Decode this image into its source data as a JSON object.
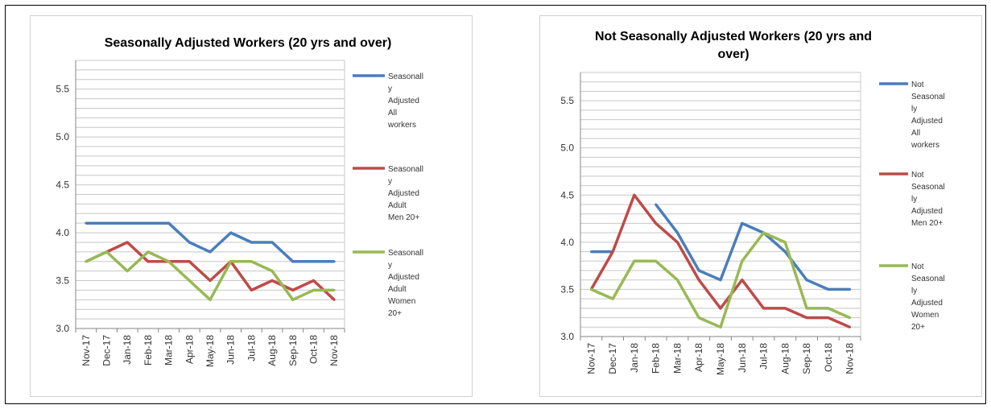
{
  "chart_data": [
    {
      "type": "line",
      "title": "Seasonally Adjusted Workers (20 yrs and over)",
      "categories": [
        "Nov-17",
        "Dec-17",
        "Jan-18",
        "Feb-18",
        "Mar-18",
        "Apr-18",
        "May-18",
        "Jun-18",
        "Jul-18",
        "Aug-18",
        "Sep-18",
        "Oct-18",
        "Nov-18"
      ],
      "ylim": [
        3.0,
        5.8
      ],
      "y_ticks": [
        "3.0",
        "3.5",
        "4.0",
        "4.5",
        "5.0",
        "5.5"
      ],
      "y_tick_values": [
        3.0,
        3.5,
        4.0,
        4.5,
        5.0,
        5.5
      ],
      "grid": true,
      "legend_position": "right",
      "series": [
        {
          "name": "Seasonally Adjusted All workers",
          "name_lines": [
            "Seasonall",
            "y",
            "Adjusted",
            "All",
            "workers"
          ],
          "color": "#4a7ebb",
          "values": [
            4.1,
            4.1,
            4.1,
            4.1,
            4.1,
            3.9,
            3.8,
            4.0,
            3.9,
            3.9,
            3.7,
            3.7,
            3.7
          ]
        },
        {
          "name": "Seasonally Adjusted Adult Men 20+",
          "name_lines": [
            "Seasonall",
            "y",
            "Adjusted",
            "Adult",
            "Men 20+"
          ],
          "color": "#be4b48",
          "values": [
            3.7,
            3.8,
            3.9,
            3.7,
            3.7,
            3.7,
            3.5,
            3.7,
            3.4,
            3.5,
            3.4,
            3.5,
            3.3
          ]
        },
        {
          "name": "Seasonally Adjusted Adult Women 20+",
          "name_lines": [
            "Seasonall",
            "y",
            "Adjusted",
            "Adult",
            "Women",
            "20+"
          ],
          "color": "#98b954",
          "values": [
            3.7,
            3.8,
            3.6,
            3.8,
            3.7,
            3.5,
            3.3,
            3.7,
            3.7,
            3.6,
            3.3,
            3.4,
            3.4
          ]
        }
      ]
    },
    {
      "type": "line",
      "title": "Not Seasonally Adjusted Workers (20 yrs and over)",
      "title_lines": [
        "Not Seasonally Adjusted Workers (20 yrs and",
        "over)"
      ],
      "categories": [
        "Nov-17",
        "Dec-17",
        "Jan-18",
        "Feb-18",
        "Mar-18",
        "Apr-18",
        "May-18",
        "Jun-18",
        "Jul-18",
        "Aug-18",
        "Sep-18",
        "Oct-18",
        "Nov-18"
      ],
      "ylim": [
        3.0,
        5.8
      ],
      "y_ticks": [
        "3.0",
        "3.5",
        "4.0",
        "4.5",
        "5.0",
        "5.5"
      ],
      "y_tick_values": [
        3.0,
        3.5,
        4.0,
        4.5,
        5.0,
        5.5
      ],
      "grid": true,
      "legend_position": "right",
      "series": [
        {
          "name": "Not Seasonally Adjusted All workers",
          "name_lines": [
            "Not",
            "Seasonal",
            "ly",
            "Adjusted",
            "All",
            "workers"
          ],
          "color": "#4a7ebb",
          "values": [
            3.9,
            3.9,
            null,
            4.4,
            4.1,
            3.7,
            3.6,
            4.2,
            4.1,
            3.9,
            3.6,
            3.5,
            3.5
          ]
        },
        {
          "name": "Not Seasonally Adjusted Men 20+",
          "name_lines": [
            "Not",
            "Seasonal",
            "ly",
            "Adjusted",
            "Men 20+"
          ],
          "color": "#be4b48",
          "values": [
            3.5,
            3.9,
            4.5,
            4.2,
            4.0,
            3.6,
            3.3,
            3.6,
            3.3,
            3.3,
            3.2,
            3.2,
            3.1
          ]
        },
        {
          "name": "Not Seasonally Adjusted Women 20+",
          "name_lines": [
            "Not",
            "Seasonal",
            "ly",
            "Adjusted",
            "Women",
            "20+"
          ],
          "color": "#98b954",
          "values": [
            3.5,
            3.4,
            3.8,
            3.8,
            3.6,
            3.2,
            3.1,
            3.8,
            4.1,
            4.0,
            3.3,
            3.3,
            3.2
          ]
        }
      ]
    }
  ]
}
